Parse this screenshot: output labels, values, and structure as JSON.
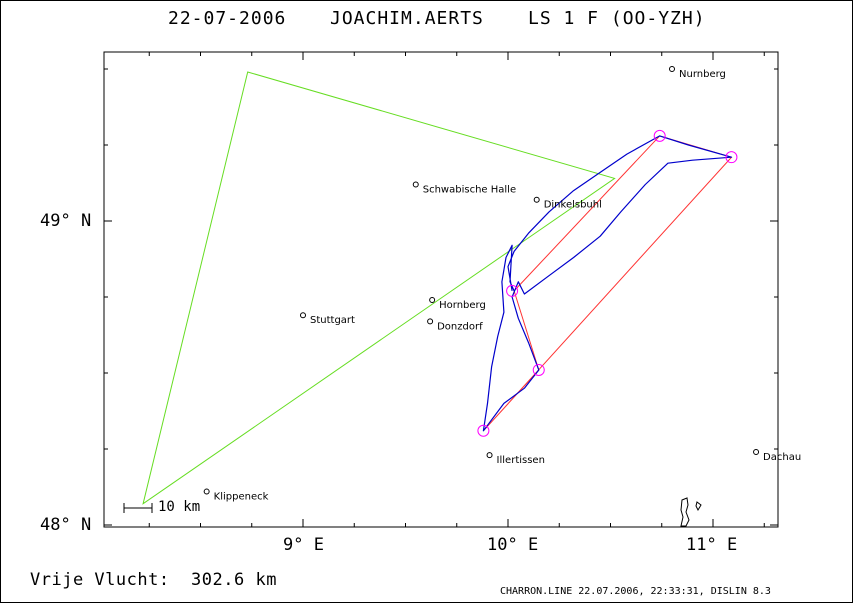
{
  "header": {
    "date": "22-07-2006",
    "pilot": "JOACHIM.AERTS",
    "glider": "LS 1 F (OO-YZH)"
  },
  "map": {
    "lat_ticks": [
      {
        "label": "49° N",
        "value": 49.0
      },
      {
        "label": "48° N",
        "value": 48.0
      }
    ],
    "lon_ticks": [
      {
        "label": "9° E",
        "value": 9.0
      },
      {
        "label": "10° E",
        "value": 10.0
      },
      {
        "label": "11° E",
        "value": 11.0
      }
    ],
    "scale_bar": "10 km",
    "towns": [
      {
        "name": "Nurnberg",
        "lon": 10.8,
        "lat": 49.5
      },
      {
        "name": "Schwabische Halle",
        "lon": 9.55,
        "lat": 49.12
      },
      {
        "name": "Dinkelsbuhl",
        "lon": 10.14,
        "lat": 49.07
      },
      {
        "name": "Stuttgart",
        "lon": 9.0,
        "lat": 48.69
      },
      {
        "name": "Hornberg",
        "lon": 9.63,
        "lat": 48.74
      },
      {
        "name": "Donzdorf",
        "lon": 9.62,
        "lat": 48.67
      },
      {
        "name": "Illertissen",
        "lon": 9.91,
        "lat": 48.23
      },
      {
        "name": "Klippeneck",
        "lon": 8.53,
        "lat": 48.11
      },
      {
        "name": "Dachau",
        "lon": 11.21,
        "lat": 48.24
      }
    ],
    "triangle_green": [
      {
        "lon": 8.73,
        "lat": 49.49
      },
      {
        "lon": 10.52,
        "lat": 49.14
      },
      {
        "lon": 8.22,
        "lat": 48.07
      }
    ],
    "task_red": [
      {
        "lon": 10.03,
        "lat": 48.77
      },
      {
        "lon": 10.74,
        "lat": 49.28
      },
      {
        "lon": 11.09,
        "lat": 49.21
      },
      {
        "lon": 9.88,
        "lat": 48.31
      },
      {
        "lon": 10.15,
        "lat": 48.51
      },
      {
        "lon": 10.03,
        "lat": 48.77
      }
    ],
    "turnpoints": [
      {
        "lon": 10.74,
        "lat": 49.28
      },
      {
        "lon": 11.09,
        "lat": 49.21
      },
      {
        "lon": 9.88,
        "lat": 48.31
      },
      {
        "lon": 10.15,
        "lat": 48.51
      },
      {
        "lon": 10.02,
        "lat": 48.77
      }
    ],
    "track": [
      {
        "lon": 10.02,
        "lat": 48.77
      },
      {
        "lon": 10.0,
        "lat": 48.85
      },
      {
        "lon": 10.03,
        "lat": 48.9
      },
      {
        "lon": 10.1,
        "lat": 48.96
      },
      {
        "lon": 10.2,
        "lat": 49.03
      },
      {
        "lon": 10.32,
        "lat": 49.1
      },
      {
        "lon": 10.45,
        "lat": 49.16
      },
      {
        "lon": 10.58,
        "lat": 49.22
      },
      {
        "lon": 10.74,
        "lat": 49.28
      },
      {
        "lon": 10.88,
        "lat": 49.25
      },
      {
        "lon": 11.09,
        "lat": 49.21
      },
      {
        "lon": 10.9,
        "lat": 49.2
      },
      {
        "lon": 10.78,
        "lat": 49.19
      },
      {
        "lon": 10.67,
        "lat": 49.12
      },
      {
        "lon": 10.55,
        "lat": 49.03
      },
      {
        "lon": 10.45,
        "lat": 48.95
      },
      {
        "lon": 10.32,
        "lat": 48.88
      },
      {
        "lon": 10.2,
        "lat": 48.82
      },
      {
        "lon": 10.08,
        "lat": 48.76
      },
      {
        "lon": 10.05,
        "lat": 48.8
      },
      {
        "lon": 10.02,
        "lat": 48.75
      },
      {
        "lon": 10.05,
        "lat": 48.68
      },
      {
        "lon": 10.1,
        "lat": 48.6
      },
      {
        "lon": 10.15,
        "lat": 48.51
      },
      {
        "lon": 10.08,
        "lat": 48.45
      },
      {
        "lon": 9.98,
        "lat": 48.4
      },
      {
        "lon": 9.88,
        "lat": 48.31
      },
      {
        "lon": 9.9,
        "lat": 48.4
      },
      {
        "lon": 9.92,
        "lat": 48.52
      },
      {
        "lon": 9.95,
        "lat": 48.62
      },
      {
        "lon": 9.98,
        "lat": 48.7
      },
      {
        "lon": 9.97,
        "lat": 48.8
      },
      {
        "lon": 9.99,
        "lat": 48.88
      },
      {
        "lon": 10.02,
        "lat": 48.92
      },
      {
        "lon": 10.01,
        "lat": 48.8
      },
      {
        "lon": 10.03,
        "lat": 48.77
      }
    ],
    "colors": {
      "triangle": "#66dd22",
      "task": "#ff3333",
      "track": "#0000cc",
      "turnpoint": "#ff00ff"
    }
  },
  "footer": {
    "distance_label": "Vrije Vlucht:",
    "distance_value": "302.6 km",
    "credit": "CHARRON.LINE 22.07.2006, 22:33:31, DISLIN 8.3"
  }
}
